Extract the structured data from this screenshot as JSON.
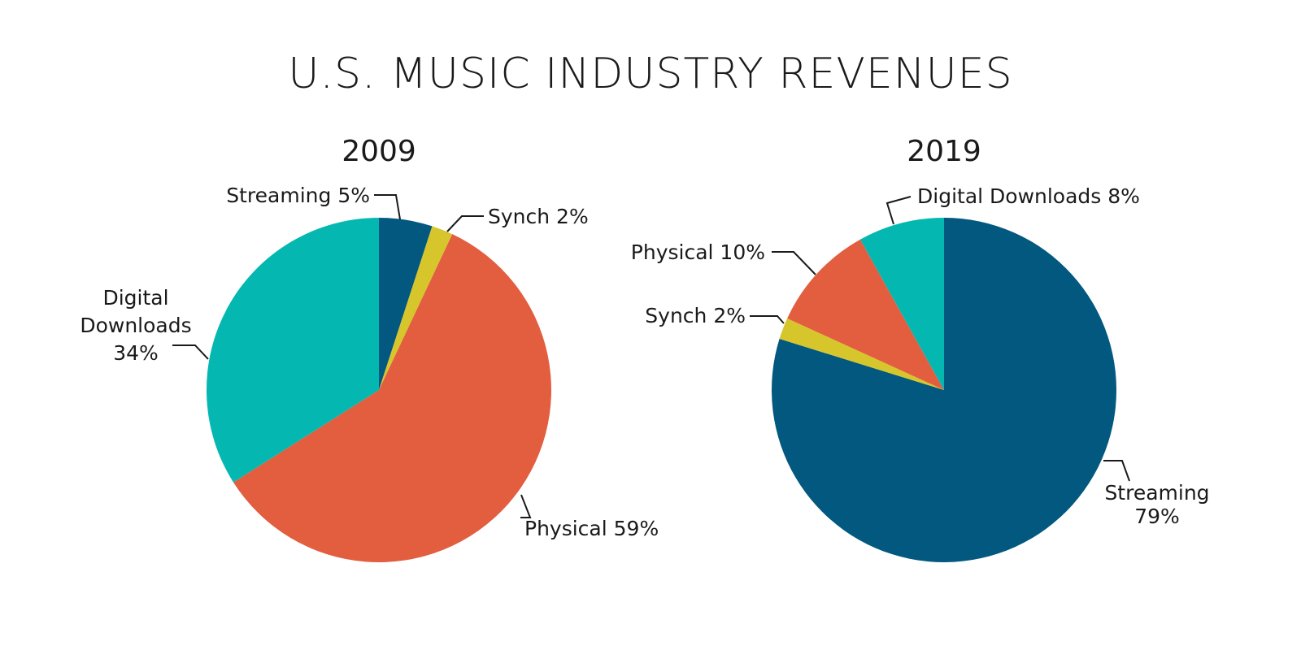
{
  "title": "U.S. MUSIC INDUSTRY REVENUES",
  "colors": {
    "Streaming": "#02587E",
    "Synch": "#D6C62C",
    "Physical": "#E35D3F",
    "Digital Downloads": "#04B8B1"
  },
  "chart_data": [
    {
      "type": "pie",
      "title": "2009",
      "slices": [
        {
          "category": "Streaming",
          "value": 5,
          "label": [
            "Streaming 5%"
          ]
        },
        {
          "category": "Synch",
          "value": 2,
          "label": [
            "Synch 2%"
          ]
        },
        {
          "category": "Physical",
          "value": 59,
          "label": [
            "Physical 59%"
          ]
        },
        {
          "category": "Digital Downloads",
          "value": 34,
          "label": [
            "Digital",
            "Downloads",
            "34%"
          ]
        }
      ]
    },
    {
      "type": "pie",
      "title": "2019",
      "slices": [
        {
          "category": "Streaming",
          "value": 79,
          "label": [
            "Streaming",
            "79%"
          ]
        },
        {
          "category": "Synch",
          "value": 2,
          "label": [
            "Synch 2%"
          ]
        },
        {
          "category": "Physical",
          "value": 10,
          "label": [
            "Physical 10%"
          ]
        },
        {
          "category": "Digital Downloads",
          "value": 8,
          "label": [
            "Digital Downloads 8%"
          ]
        }
      ]
    }
  ]
}
